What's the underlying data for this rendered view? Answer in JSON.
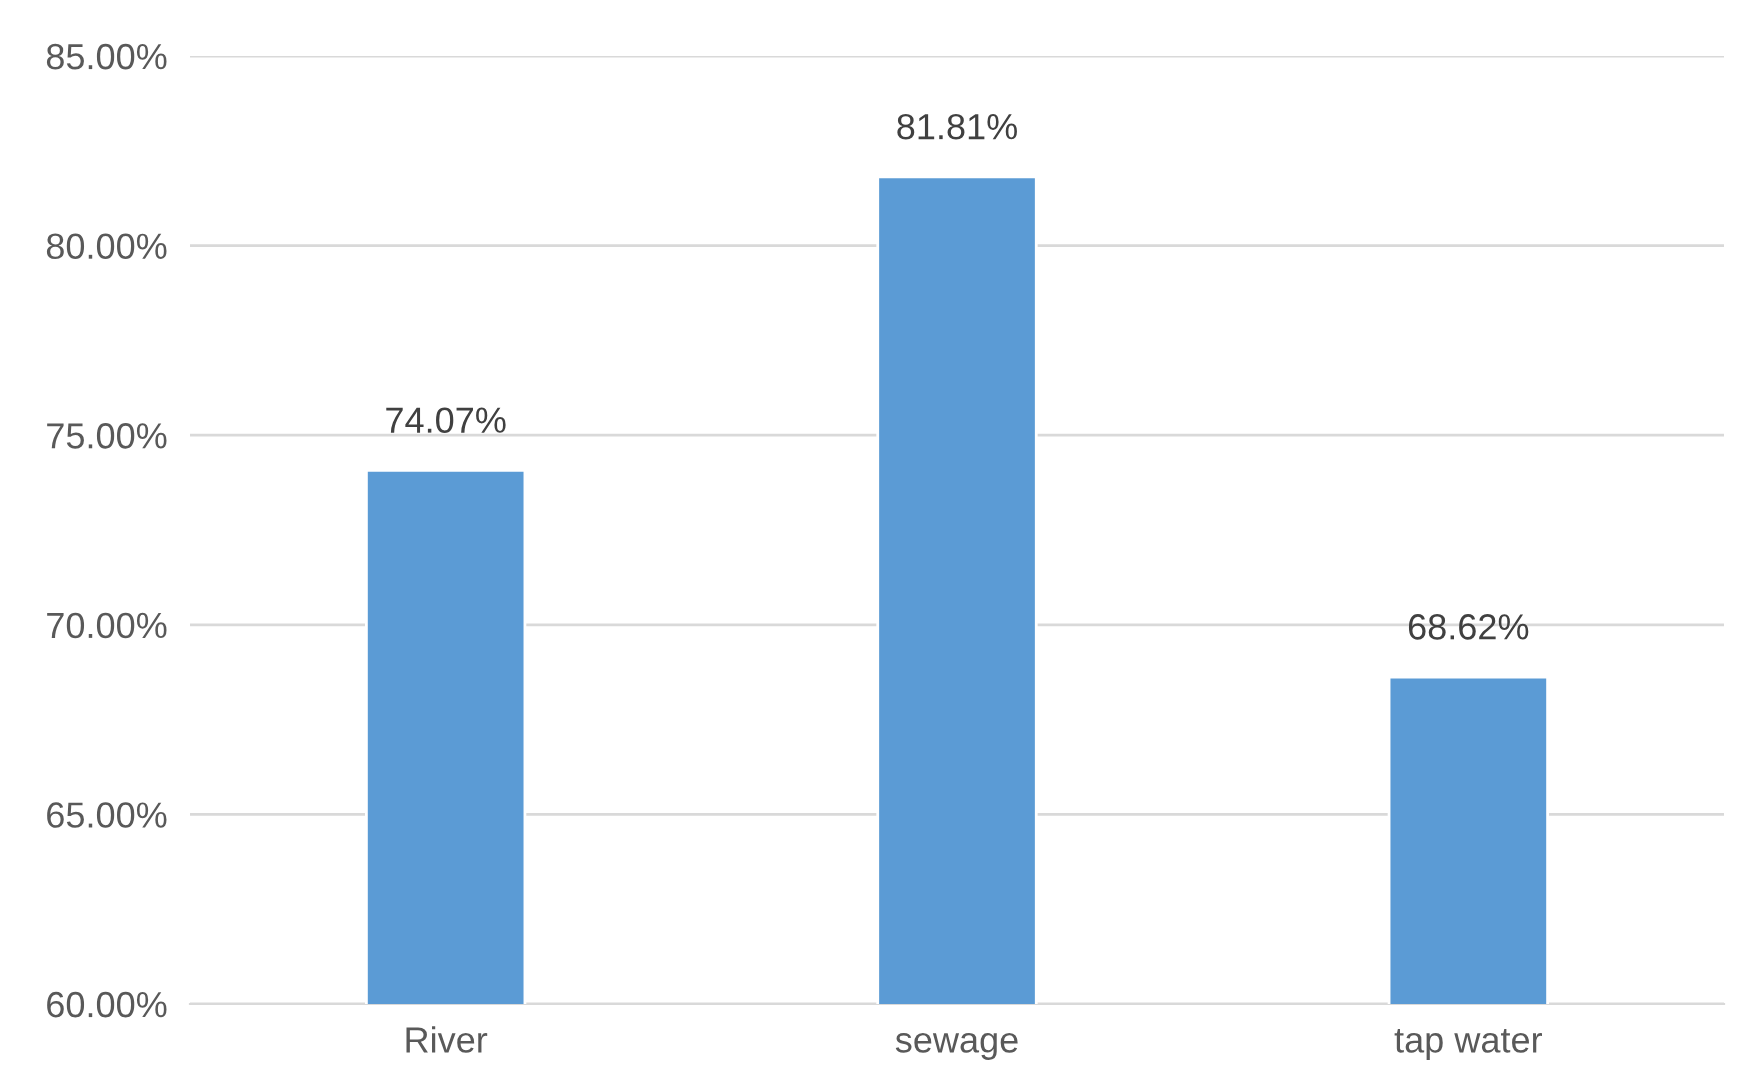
{
  "chart_data": {
    "type": "bar",
    "categories": [
      "River",
      "sewage",
      "tap water"
    ],
    "values": [
      74.07,
      81.81,
      68.62
    ],
    "value_labels": [
      "74.07%",
      "81.81%",
      "68.62%"
    ],
    "color": "#5b9bd5",
    "ylim": [
      60,
      85
    ],
    "yticks": [
      {
        "value": 60,
        "label": "60.00%"
      },
      {
        "value": 65,
        "label": "65.00%"
      },
      {
        "value": 70,
        "label": "70.00%"
      },
      {
        "value": 75,
        "label": "75.00%"
      },
      {
        "value": 80,
        "label": "80.00%"
      },
      {
        "value": 85,
        "label": "85.00%"
      }
    ],
    "grid": "y",
    "legend": false
  }
}
